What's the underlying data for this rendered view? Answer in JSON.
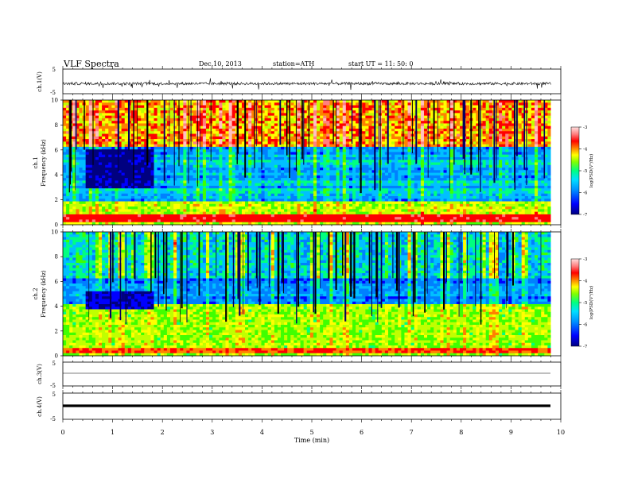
{
  "header": {
    "title": "VLF  Spectra",
    "date": "Dec.10, 2013",
    "station": "station=ATH",
    "start": "start  UT  =   11: 50: 0"
  },
  "chart_data": [
    {
      "type": "line",
      "panel": "ch1-waveform",
      "ylabel": "ch.1(V)",
      "ylim": [
        -5,
        5
      ],
      "yticks": [
        "5",
        "-5"
      ],
      "note": "noisy waveform, baseline near -1 V with spikes"
    },
    {
      "type": "heatmap",
      "panel": "ch1-spectrogram",
      "ylabel": "ch.1\nFrequency (kHz)",
      "ylabel_line1": "ch.1",
      "ylabel_line2": "Frequency  (kHz)",
      "ylim": [
        0,
        10
      ],
      "yticks": [
        "0",
        "2",
        "4",
        "6",
        "8",
        "10"
      ],
      "colorbar": {
        "label": "log(PSD(V²/Hz)",
        "range": [
          -7,
          -3
        ],
        "ticks": [
          "-3",
          "-4",
          "-5",
          "-6",
          "-7"
        ]
      }
    },
    {
      "type": "heatmap",
      "panel": "ch2-spectrogram",
      "ylabel_line1": "ch.2",
      "ylabel_line2": "Frequency  (kHz)",
      "ylim": [
        0,
        10
      ],
      "yticks": [
        "0",
        "2",
        "4",
        "6",
        "8",
        "10"
      ],
      "colorbar": {
        "label": "log(PSD(V²/Hz)",
        "range": [
          -7,
          -3
        ],
        "ticks": [
          "-3",
          "-4",
          "-5",
          "-6",
          "-7"
        ]
      }
    },
    {
      "type": "line",
      "panel": "ch3-waveform",
      "ylabel": "ch.3(V)",
      "ylim": [
        -5,
        5
      ],
      "yticks": [
        "5",
        "-5"
      ],
      "note": "flat trace near -1 V"
    },
    {
      "type": "line",
      "panel": "ch4-waveform",
      "ylabel": "ch.4(V)",
      "ylim": [
        -5,
        5
      ],
      "yticks": [
        "5",
        "-5"
      ],
      "note": "thick flat trace near -1 V"
    }
  ],
  "xaxis": {
    "label": "Time  (min)",
    "range": [
      0,
      10
    ],
    "ticks": [
      "0",
      "1",
      "2",
      "3",
      "4",
      "5",
      "6",
      "7",
      "8",
      "9",
      "10"
    ],
    "data_end": 9.8
  },
  "colors": {
    "scale": [
      "#000080",
      "#0000ff",
      "#0080ff",
      "#00c0ff",
      "#00ff80",
      "#40ff00",
      "#c0ff00",
      "#ffff00",
      "#ff8000",
      "#ff0000",
      "#ff8080",
      "#ffc0c0"
    ]
  }
}
